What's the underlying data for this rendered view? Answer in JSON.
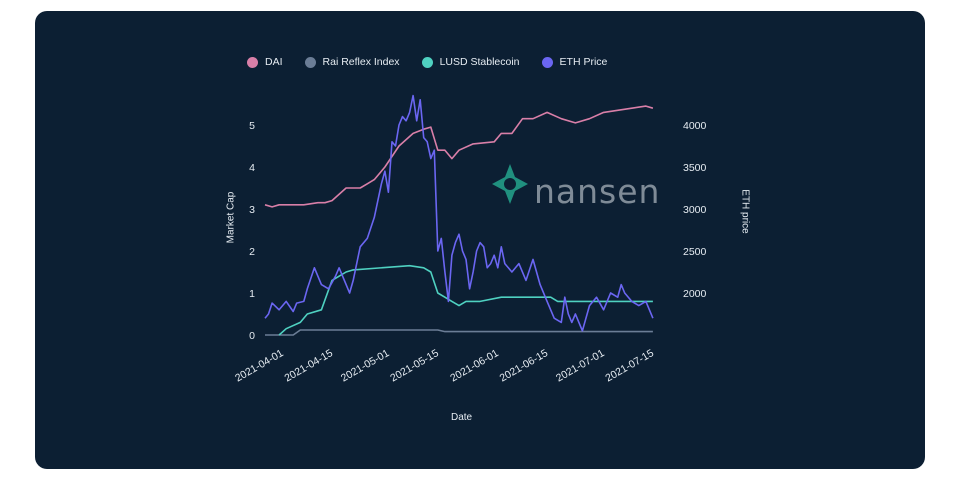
{
  "legend": [
    {
      "name": "DAI",
      "color": "#d97fa8"
    },
    {
      "name": "Rai Reflex Index",
      "color": "#6b7d96"
    },
    {
      "name": "LUSD Stablecoin",
      "color": "#4fd1c1"
    },
    {
      "name": "ETH Price",
      "color": "#6b66f2"
    }
  ],
  "watermark": {
    "text": "nansen",
    "icon": "nansen-logo-icon"
  },
  "chart_data": {
    "type": "line",
    "xlabel": "Date",
    "ylabel": "Market Cap",
    "y2label": "ETH price",
    "x_ticks": [
      "2021-04-01",
      "2021-04-15",
      "2021-05-01",
      "2021-05-15",
      "2021-06-01",
      "2021-06-15",
      "2021-07-01",
      "2021-07-15"
    ],
    "x_range": [
      "2021-03-28",
      "2021-07-18"
    ],
    "ylim": [
      0,
      5.5
    ],
    "y_ticks": [
      0,
      1,
      2,
      3,
      4,
      5
    ],
    "y2lim": [
      1500,
      4250
    ],
    "y2_ticks": [
      2000,
      2500,
      3000,
      3500,
      4000
    ],
    "series": [
      {
        "name": "DAI",
        "axis": "left",
        "color": "#d97fa8",
        "x": [
          "2021-03-28",
          "2021-03-30",
          "2021-04-01",
          "2021-04-08",
          "2021-04-12",
          "2021-04-14",
          "2021-04-16",
          "2021-04-20",
          "2021-04-24",
          "2021-04-26",
          "2021-04-28",
          "2021-05-01",
          "2021-05-05",
          "2021-05-09",
          "2021-05-12",
          "2021-05-14",
          "2021-05-16",
          "2021-05-18",
          "2021-05-20",
          "2021-05-22",
          "2021-05-26",
          "2021-06-01",
          "2021-06-03",
          "2021-06-06",
          "2021-06-09",
          "2021-06-12",
          "2021-06-16",
          "2021-06-20",
          "2021-06-24",
          "2021-06-28",
          "2021-07-02",
          "2021-07-06",
          "2021-07-10",
          "2021-07-14",
          "2021-07-16"
        ],
        "values": [
          3.1,
          3.05,
          3.1,
          3.1,
          3.15,
          3.15,
          3.2,
          3.5,
          3.5,
          3.6,
          3.7,
          4.0,
          4.5,
          4.8,
          4.9,
          4.95,
          4.4,
          4.4,
          4.2,
          4.4,
          4.55,
          4.6,
          4.8,
          4.8,
          5.15,
          5.15,
          5.3,
          5.15,
          5.05,
          5.15,
          5.3,
          5.35,
          5.4,
          5.45,
          5.4
        ]
      },
      {
        "name": "Rai Reflex Index",
        "axis": "left",
        "color": "#6b7d96",
        "x": [
          "2021-03-28",
          "2021-04-05",
          "2021-04-07",
          "2021-05-16",
          "2021-05-18",
          "2021-07-16"
        ],
        "values": [
          0.0,
          0.0,
          0.12,
          0.12,
          0.08,
          0.08
        ]
      },
      {
        "name": "LUSD Stablecoin",
        "axis": "left",
        "color": "#4fd1c1",
        "x": [
          "2021-04-01",
          "2021-04-03",
          "2021-04-07",
          "2021-04-09",
          "2021-04-13",
          "2021-04-16",
          "2021-04-18",
          "2021-04-20",
          "2021-04-22",
          "2021-05-08",
          "2021-05-12",
          "2021-05-14",
          "2021-05-16",
          "2021-05-18",
          "2021-05-20",
          "2021-05-22",
          "2021-05-24",
          "2021-05-28",
          "2021-06-03",
          "2021-06-17",
          "2021-06-19",
          "2021-07-16"
        ],
        "values": [
          0.0,
          0.15,
          0.3,
          0.5,
          0.6,
          1.3,
          1.4,
          1.5,
          1.55,
          1.65,
          1.6,
          1.5,
          1.0,
          0.9,
          0.8,
          0.7,
          0.8,
          0.8,
          0.9,
          0.9,
          0.8,
          0.8
        ]
      },
      {
        "name": "ETH Price",
        "axis": "right",
        "color": "#6b66f2",
        "x": [
          "2021-03-28",
          "2021-03-29",
          "2021-03-30",
          "2021-04-01",
          "2021-04-02",
          "2021-04-03",
          "2021-04-05",
          "2021-04-06",
          "2021-04-08",
          "2021-04-09",
          "2021-04-11",
          "2021-04-13",
          "2021-04-15",
          "2021-04-17",
          "2021-04-18",
          "2021-04-20",
          "2021-04-21",
          "2021-04-22",
          "2021-04-24",
          "2021-04-26",
          "2021-04-28",
          "2021-04-30",
          "2021-05-01",
          "2021-05-02",
          "2021-05-03",
          "2021-05-04",
          "2021-05-05",
          "2021-05-06",
          "2021-05-07",
          "2021-05-08",
          "2021-05-09",
          "2021-05-10",
          "2021-05-11",
          "2021-05-12",
          "2021-05-13",
          "2021-05-14",
          "2021-05-15",
          "2021-05-16",
          "2021-05-17",
          "2021-05-18",
          "2021-05-19",
          "2021-05-20",
          "2021-05-21",
          "2021-05-22",
          "2021-05-23",
          "2021-05-24",
          "2021-05-25",
          "2021-05-26",
          "2021-05-27",
          "2021-05-28",
          "2021-05-29",
          "2021-05-30",
          "2021-05-31",
          "2021-06-01",
          "2021-06-02",
          "2021-06-03",
          "2021-06-04",
          "2021-06-06",
          "2021-06-08",
          "2021-06-10",
          "2021-06-12",
          "2021-06-14",
          "2021-06-16",
          "2021-06-18",
          "2021-06-20",
          "2021-06-21",
          "2021-06-22",
          "2021-06-23",
          "2021-06-24",
          "2021-06-25",
          "2021-06-26",
          "2021-06-28",
          "2021-06-30",
          "2021-07-02",
          "2021-07-04",
          "2021-07-06",
          "2021-07-07",
          "2021-07-08",
          "2021-07-10",
          "2021-07-12",
          "2021-07-14",
          "2021-07-16"
        ],
        "values": [
          1700,
          1750,
          1880,
          1800,
          1850,
          1900,
          1780,
          1880,
          1900,
          2050,
          2300,
          2100,
          2050,
          2200,
          2300,
          2100,
          2000,
          2150,
          2550,
          2650,
          2900,
          3300,
          3450,
          3200,
          3800,
          3750,
          4000,
          4100,
          4050,
          4150,
          4350,
          4050,
          4300,
          3850,
          3800,
          3600,
          3700,
          2500,
          2650,
          2250,
          1900,
          2450,
          2600,
          2700,
          2500,
          2400,
          2050,
          2250,
          2500,
          2600,
          2550,
          2300,
          2350,
          2450,
          2300,
          2550,
          2350,
          2250,
          2350,
          2150,
          2400,
          2100,
          1900,
          1700,
          1650,
          1950,
          1750,
          1650,
          1750,
          1650,
          1550,
          1850,
          1950,
          1800,
          2000,
          1950,
          2100,
          2000,
          1900,
          1850,
          1900,
          1700
        ]
      }
    ],
    "legend_position": "top",
    "grid": false
  }
}
